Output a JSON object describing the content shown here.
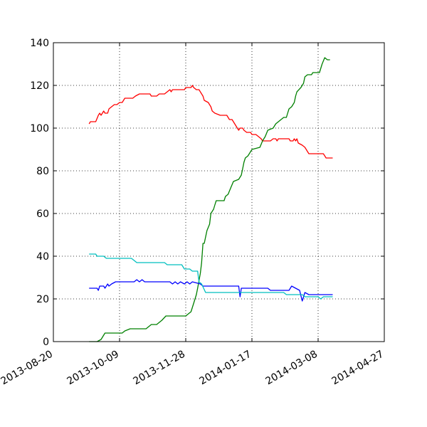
{
  "chart_data": {
    "type": "line",
    "title": "",
    "xlabel": "",
    "ylabel": "",
    "grid": true,
    "xlim": [
      "2013-08-20",
      "2014-04-27"
    ],
    "ylim": [
      0,
      140
    ],
    "x_ticks": [
      "2013-08-20",
      "2013-10-09",
      "2013-11-28",
      "2014-01-17",
      "2014-03-08",
      "2014-04-27"
    ],
    "y_ticks": [
      0,
      20,
      40,
      60,
      80,
      100,
      120,
      140
    ],
    "series": [
      {
        "color": "#ff0000",
        "points": [
          [
            "2013-09-16",
            102
          ],
          [
            "2013-09-17",
            103
          ],
          [
            "2013-09-21",
            103
          ],
          [
            "2013-09-23",
            106
          ],
          [
            "2013-09-24",
            107
          ],
          [
            "2013-09-25",
            106
          ],
          [
            "2013-09-27",
            108
          ],
          [
            "2013-09-28",
            107
          ],
          [
            "2013-09-30",
            107
          ],
          [
            "2013-10-01",
            109
          ],
          [
            "2013-10-03",
            110
          ],
          [
            "2013-10-05",
            111
          ],
          [
            "2013-10-07",
            111
          ],
          [
            "2013-10-09",
            112
          ],
          [
            "2013-10-11",
            112
          ],
          [
            "2013-10-13",
            114
          ],
          [
            "2013-10-19",
            114
          ],
          [
            "2013-10-21",
            115
          ],
          [
            "2013-10-24",
            116
          ],
          [
            "2013-11-01",
            116
          ],
          [
            "2013-11-02",
            115
          ],
          [
            "2013-11-06",
            115
          ],
          [
            "2013-11-08",
            116
          ],
          [
            "2013-11-12",
            116
          ],
          [
            "2013-11-14",
            117
          ],
          [
            "2013-11-16",
            118
          ],
          [
            "2013-11-17",
            117
          ],
          [
            "2013-11-18",
            118
          ],
          [
            "2013-11-27",
            118
          ],
          [
            "2013-11-28",
            119
          ],
          [
            "2013-12-02",
            119
          ],
          [
            "2013-12-03",
            120
          ],
          [
            "2013-12-04",
            119
          ],
          [
            "2013-12-06",
            118
          ],
          [
            "2013-12-08",
            118
          ],
          [
            "2013-12-11",
            115
          ],
          [
            "2013-12-12",
            113
          ],
          [
            "2013-12-15",
            112
          ],
          [
            "2013-12-17",
            110
          ],
          [
            "2013-12-18",
            108
          ],
          [
            "2013-12-20",
            107
          ],
          [
            "2013-12-24",
            106
          ],
          [
            "2013-12-29",
            106
          ],
          [
            "2013-12-31",
            104
          ],
          [
            "2014-01-02",
            104
          ],
          [
            "2014-01-04",
            102
          ],
          [
            "2014-01-06",
            100
          ],
          [
            "2014-01-07",
            99
          ],
          [
            "2014-01-08",
            100
          ],
          [
            "2014-01-10",
            100
          ],
          [
            "2014-01-11",
            99
          ],
          [
            "2014-01-13",
            98
          ],
          [
            "2014-01-16",
            98
          ],
          [
            "2014-01-17",
            97
          ],
          [
            "2014-01-20",
            97
          ],
          [
            "2014-01-22",
            96
          ],
          [
            "2014-01-24",
            95
          ],
          [
            "2014-01-25",
            94
          ],
          [
            "2014-01-31",
            94
          ],
          [
            "2014-02-02",
            95
          ],
          [
            "2014-02-04",
            95
          ],
          [
            "2014-02-05",
            94
          ],
          [
            "2014-02-06",
            95
          ],
          [
            "2014-02-14",
            95
          ],
          [
            "2014-02-15",
            94
          ],
          [
            "2014-02-17",
            94
          ],
          [
            "2014-02-18",
            95
          ],
          [
            "2014-02-19",
            94
          ],
          [
            "2014-02-20",
            95
          ],
          [
            "2014-02-21",
            93
          ],
          [
            "2014-02-24",
            92
          ],
          [
            "2014-02-26",
            91
          ],
          [
            "2014-02-27",
            90
          ],
          [
            "2014-02-28",
            89
          ],
          [
            "2014-03-01",
            88
          ],
          [
            "2014-03-12",
            88
          ],
          [
            "2014-03-14",
            86
          ],
          [
            "2014-03-19",
            86
          ]
        ]
      },
      {
        "color": "#008000",
        "points": [
          [
            "2013-09-16",
            0
          ],
          [
            "2013-09-22",
            0
          ],
          [
            "2013-09-25",
            1
          ],
          [
            "2013-09-28",
            4
          ],
          [
            "2013-10-11",
            4
          ],
          [
            "2013-10-13",
            5
          ],
          [
            "2013-10-17",
            6
          ],
          [
            "2013-10-29",
            6
          ],
          [
            "2013-10-31",
            7
          ],
          [
            "2013-11-02",
            8
          ],
          [
            "2013-11-06",
            8
          ],
          [
            "2013-11-08",
            9
          ],
          [
            "2013-11-10",
            10
          ],
          [
            "2013-11-13",
            12
          ],
          [
            "2013-11-28",
            12
          ],
          [
            "2013-11-30",
            13
          ],
          [
            "2013-12-02",
            14
          ],
          [
            "2013-12-04",
            18
          ],
          [
            "2013-12-06",
            22
          ],
          [
            "2013-12-07",
            25
          ],
          [
            "2013-12-09",
            32
          ],
          [
            "2013-12-10",
            37
          ],
          [
            "2013-12-11",
            46
          ],
          [
            "2013-12-12",
            46
          ],
          [
            "2013-12-14",
            52
          ],
          [
            "2013-12-16",
            55
          ],
          [
            "2013-12-17",
            60
          ],
          [
            "2013-12-19",
            62
          ],
          [
            "2013-12-20",
            64
          ],
          [
            "2013-12-21",
            66
          ],
          [
            "2013-12-27",
            66
          ],
          [
            "2013-12-28",
            68
          ],
          [
            "2013-12-30",
            69
          ],
          [
            "2014-01-01",
            72
          ],
          [
            "2014-01-03",
            75
          ],
          [
            "2014-01-07",
            76
          ],
          [
            "2014-01-09",
            78
          ],
          [
            "2014-01-10",
            81
          ],
          [
            "2014-01-11",
            84
          ],
          [
            "2014-01-12",
            86
          ],
          [
            "2014-01-14",
            87
          ],
          [
            "2014-01-15",
            88
          ],
          [
            "2014-01-17",
            90
          ],
          [
            "2014-01-23",
            91
          ],
          [
            "2014-01-25",
            94
          ],
          [
            "2014-01-27",
            96
          ],
          [
            "2014-01-29",
            99
          ],
          [
            "2014-02-02",
            100
          ],
          [
            "2014-02-04",
            102
          ],
          [
            "2014-02-06",
            103
          ],
          [
            "2014-02-08",
            104
          ],
          [
            "2014-02-10",
            105
          ],
          [
            "2014-02-12",
            105
          ],
          [
            "2014-02-13",
            107
          ],
          [
            "2014-02-14",
            109
          ],
          [
            "2014-02-16",
            110
          ],
          [
            "2014-02-18",
            112
          ],
          [
            "2014-02-19",
            115
          ],
          [
            "2014-02-20",
            117
          ],
          [
            "2014-02-23",
            119
          ],
          [
            "2014-02-25",
            121
          ],
          [
            "2014-02-26",
            124
          ],
          [
            "2014-02-28",
            125
          ],
          [
            "2014-03-03",
            125
          ],
          [
            "2014-03-04",
            126
          ],
          [
            "2014-03-09",
            126
          ],
          [
            "2014-03-11",
            130
          ],
          [
            "2014-03-13",
            133
          ],
          [
            "2014-03-15",
            132
          ],
          [
            "2014-03-17",
            132
          ]
        ]
      },
      {
        "color": "#0000ff",
        "points": [
          [
            "2013-09-16",
            25
          ],
          [
            "2013-09-22",
            25
          ],
          [
            "2013-09-23",
            24
          ],
          [
            "2013-09-24",
            26
          ],
          [
            "2013-09-27",
            26
          ],
          [
            "2013-09-28",
            25
          ],
          [
            "2013-09-30",
            27
          ],
          [
            "2013-10-01",
            26
          ],
          [
            "2013-10-03",
            27
          ],
          [
            "2013-10-06",
            28
          ],
          [
            "2013-10-20",
            28
          ],
          [
            "2013-10-22",
            29
          ],
          [
            "2013-10-24",
            28
          ],
          [
            "2013-10-26",
            29
          ],
          [
            "2013-10-28",
            28
          ],
          [
            "2013-11-16",
            28
          ],
          [
            "2013-11-18",
            27
          ],
          [
            "2013-11-20",
            28
          ],
          [
            "2013-11-22",
            27
          ],
          [
            "2013-11-24",
            28
          ],
          [
            "2013-11-27",
            27
          ],
          [
            "2013-11-29",
            28
          ],
          [
            "2013-12-01",
            27
          ],
          [
            "2013-12-03",
            28
          ],
          [
            "2013-12-09",
            27
          ],
          [
            "2013-12-11",
            26
          ],
          [
            "2014-01-07",
            26
          ],
          [
            "2014-01-08",
            21
          ],
          [
            "2014-01-09",
            25
          ],
          [
            "2014-01-29",
            25
          ],
          [
            "2014-01-31",
            24
          ],
          [
            "2014-02-14",
            24
          ],
          [
            "2014-02-16",
            26
          ],
          [
            "2014-02-19",
            25
          ],
          [
            "2014-02-22",
            24
          ],
          [
            "2014-02-24",
            19
          ],
          [
            "2014-02-26",
            23
          ],
          [
            "2014-03-01",
            22
          ],
          [
            "2014-03-19",
            22
          ]
        ]
      },
      {
        "color": "#00bfbf",
        "points": [
          [
            "2013-09-16",
            41
          ],
          [
            "2013-09-21",
            41
          ],
          [
            "2013-09-22",
            40
          ],
          [
            "2013-09-27",
            40
          ],
          [
            "2013-09-29",
            39
          ],
          [
            "2013-10-18",
            39
          ],
          [
            "2013-10-20",
            38
          ],
          [
            "2013-10-22",
            37
          ],
          [
            "2013-11-12",
            37
          ],
          [
            "2013-11-14",
            36
          ],
          [
            "2013-11-25",
            36
          ],
          [
            "2013-11-27",
            34
          ],
          [
            "2013-12-01",
            34
          ],
          [
            "2013-12-03",
            33
          ],
          [
            "2013-12-07",
            33
          ],
          [
            "2013-12-08",
            28
          ],
          [
            "2013-12-10",
            27
          ],
          [
            "2013-12-13",
            23
          ],
          [
            "2014-02-10",
            23
          ],
          [
            "2014-02-12",
            22
          ],
          [
            "2014-02-24",
            22
          ],
          [
            "2014-02-26",
            21
          ],
          [
            "2014-03-08",
            21
          ],
          [
            "2014-03-10",
            20
          ],
          [
            "2014-03-12",
            21
          ],
          [
            "2014-03-19",
            21
          ]
        ]
      }
    ]
  }
}
